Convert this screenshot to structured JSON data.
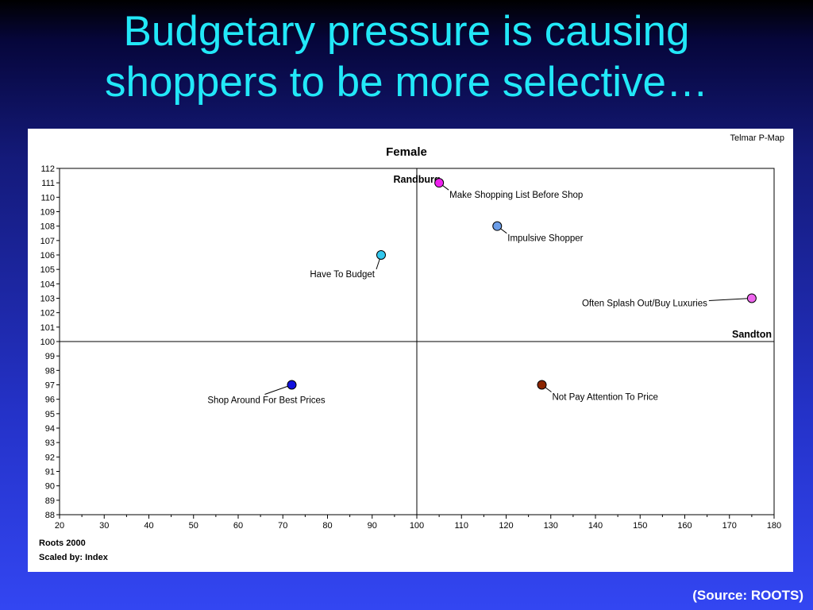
{
  "slide": {
    "title_line1": "Budgetary pressure is causing",
    "title_line2": "shoppers to be more selective…",
    "source": "(Source: ROOTS)"
  },
  "panel": {
    "brand": "Telmar P-Map",
    "footer_line1": "Roots 2000",
    "footer_line2": "Scaled by: Index"
  },
  "chart_data": {
    "type": "scatter",
    "title": "Female",
    "xlabel": "",
    "ylabel": "",
    "xlim": [
      20,
      180
    ],
    "ylim": [
      88,
      112
    ],
    "x_ticks": [
      20,
      30,
      40,
      50,
      60,
      70,
      80,
      90,
      100,
      110,
      120,
      130,
      140,
      150,
      160,
      170,
      180
    ],
    "y_ticks": [
      88,
      89,
      90,
      91,
      92,
      93,
      94,
      95,
      96,
      97,
      98,
      99,
      100,
      101,
      102,
      103,
      104,
      105,
      106,
      107,
      108,
      109,
      110,
      111,
      112
    ],
    "reference_lines": {
      "x": 100,
      "y": 100
    },
    "region_labels": [
      {
        "text": "Randburg",
        "x": 100,
        "y": 112,
        "placement": "top-center"
      },
      {
        "text": "Sandton",
        "x": 180,
        "y": 100,
        "placement": "right"
      }
    ],
    "points": [
      {
        "label": "Make Shopping List Before Shop",
        "x": 105,
        "y": 111,
        "color": "#ee22ee"
      },
      {
        "label": "Impulsive Shopper",
        "x": 118,
        "y": 108,
        "color": "#6b9de8"
      },
      {
        "label": "Have To Budget",
        "x": 92,
        "y": 106,
        "color": "#33c8ee"
      },
      {
        "label": "Often Splash Out/Buy Luxuries",
        "x": 175,
        "y": 103,
        "color": "#ee66ee"
      },
      {
        "label": "Shop Around For Best Prices",
        "x": 72,
        "y": 97,
        "color": "#1111dd"
      },
      {
        "label": "Not Pay Attention To Price",
        "x": 128,
        "y": 97,
        "color": "#8b2500"
      }
    ]
  }
}
